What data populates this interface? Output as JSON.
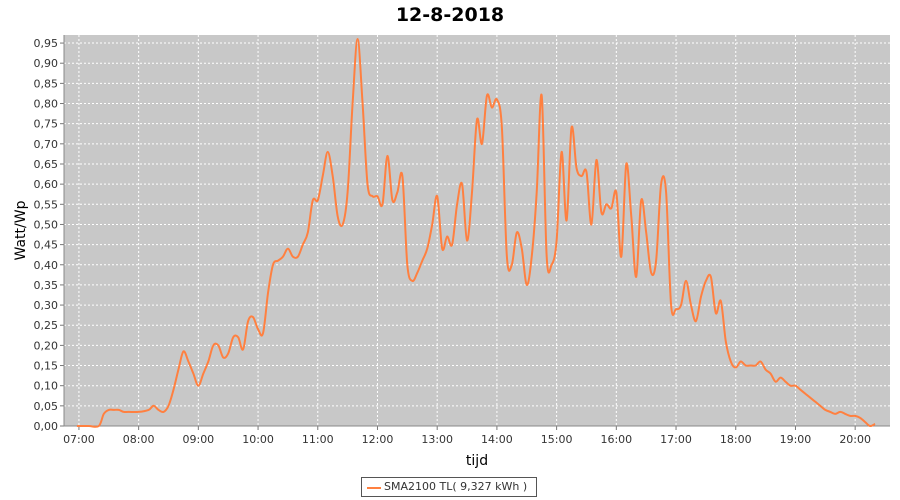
{
  "chart_data": {
    "type": "line",
    "title": "12-8-2018",
    "xlabel": "tijd",
    "ylabel": "Watt/Wp",
    "x_ticks": [
      "07:00",
      "08:00",
      "09:00",
      "10:00",
      "11:00",
      "12:00",
      "13:00",
      "14:00",
      "15:00",
      "16:00",
      "17:00",
      "18:00",
      "19:00",
      "20:00"
    ],
    "y_ticks": [
      "0,00",
      "0,05",
      "0,10",
      "0,15",
      "0,20",
      "0,25",
      "0,30",
      "0,35",
      "0,40",
      "0,45",
      "0,50",
      "0,55",
      "0,60",
      "0,65",
      "0,70",
      "0,75",
      "0,80",
      "0,85",
      "0,90",
      "0,95"
    ],
    "xlim": [
      "06:45",
      "20:35"
    ],
    "ylim": [
      0,
      0.97
    ],
    "grid": true,
    "background_color": "#c8c8c8",
    "grid_color": "#ffffff",
    "legend_position": "bottom-center",
    "series": [
      {
        "name": "SMA2100 TL( 9,327 kWh )",
        "color": "#ff8040",
        "x": [
          "06:58",
          "07:10",
          "07:20",
          "07:25",
          "07:30",
          "07:35",
          "07:40",
          "07:45",
          "07:50",
          "08:00",
          "08:10",
          "08:15",
          "08:20",
          "08:25",
          "08:30",
          "08:35",
          "08:40",
          "08:45",
          "08:50",
          "08:55",
          "09:00",
          "09:05",
          "09:10",
          "09:15",
          "09:20",
          "09:25",
          "09:30",
          "09:35",
          "09:40",
          "09:45",
          "09:50",
          "09:55",
          "10:00",
          "10:05",
          "10:10",
          "10:15",
          "10:20",
          "10:25",
          "10:30",
          "10:35",
          "10:40",
          "10:45",
          "10:50",
          "10:55",
          "11:00",
          "11:05",
          "11:10",
          "11:15",
          "11:20",
          "11:25",
          "11:30",
          "11:35",
          "11:40",
          "11:45",
          "11:50",
          "11:55",
          "12:00",
          "12:05",
          "12:10",
          "12:15",
          "12:20",
          "12:25",
          "12:30",
          "12:35",
          "12:40",
          "12:45",
          "12:50",
          "12:55",
          "13:00",
          "13:05",
          "13:10",
          "13:15",
          "13:20",
          "13:25",
          "13:30",
          "13:35",
          "13:40",
          "13:45",
          "13:50",
          "13:55",
          "14:00",
          "14:05",
          "14:10",
          "14:15",
          "14:20",
          "14:25",
          "14:30",
          "14:35",
          "14:40",
          "14:45",
          "14:50",
          "14:55",
          "15:00",
          "15:05",
          "15:10",
          "15:15",
          "15:20",
          "15:25",
          "15:30",
          "15:35",
          "15:40",
          "15:45",
          "15:50",
          "15:55",
          "16:00",
          "16:05",
          "16:10",
          "16:15",
          "16:20",
          "16:25",
          "16:30",
          "16:35",
          "16:40",
          "16:45",
          "16:50",
          "16:55",
          "17:00",
          "17:05",
          "17:10",
          "17:15",
          "17:20",
          "17:25",
          "17:30",
          "17:35",
          "17:40",
          "17:45",
          "17:50",
          "17:55",
          "18:00",
          "18:05",
          "18:10",
          "18:15",
          "18:20",
          "18:25",
          "18:30",
          "18:35",
          "18:40",
          "18:45",
          "18:50",
          "18:55",
          "19:00",
          "19:05",
          "19:10",
          "19:15",
          "19:20",
          "19:25",
          "19:30",
          "19:35",
          "19:40",
          "19:45",
          "19:50",
          "19:55",
          "20:00",
          "20:05",
          "20:10",
          "20:15",
          "20:20"
        ],
        "values": [
          0.0,
          0.0,
          0.0,
          0.03,
          0.04,
          0.04,
          0.04,
          0.035,
          0.035,
          0.035,
          0.04,
          0.05,
          0.04,
          0.035,
          0.05,
          0.09,
          0.14,
          0.185,
          0.16,
          0.13,
          0.1,
          0.13,
          0.16,
          0.2,
          0.2,
          0.17,
          0.18,
          0.22,
          0.22,
          0.19,
          0.26,
          0.27,
          0.24,
          0.23,
          0.33,
          0.4,
          0.41,
          0.42,
          0.44,
          0.42,
          0.42,
          0.45,
          0.48,
          0.56,
          0.56,
          0.62,
          0.68,
          0.62,
          0.52,
          0.5,
          0.58,
          0.8,
          0.96,
          0.8,
          0.6,
          0.57,
          0.57,
          0.55,
          0.67,
          0.56,
          0.58,
          0.62,
          0.4,
          0.36,
          0.38,
          0.41,
          0.44,
          0.5,
          0.57,
          0.44,
          0.47,
          0.45,
          0.55,
          0.6,
          0.46,
          0.58,
          0.76,
          0.7,
          0.82,
          0.79,
          0.81,
          0.74,
          0.42,
          0.4,
          0.48,
          0.44,
          0.35,
          0.42,
          0.58,
          0.82,
          0.42,
          0.4,
          0.46,
          0.68,
          0.51,
          0.74,
          0.64,
          0.62,
          0.63,
          0.5,
          0.66,
          0.53,
          0.55,
          0.54,
          0.58,
          0.42,
          0.65,
          0.52,
          0.37,
          0.56,
          0.48,
          0.38,
          0.41,
          0.6,
          0.58,
          0.3,
          0.29,
          0.3,
          0.36,
          0.3,
          0.26,
          0.32,
          0.36,
          0.37,
          0.28,
          0.31,
          0.21,
          0.16,
          0.145,
          0.16,
          0.15,
          0.15,
          0.15,
          0.16,
          0.14,
          0.13,
          0.11,
          0.12,
          0.11,
          0.1,
          0.1,
          0.09,
          0.08,
          0.07,
          0.06,
          0.05,
          0.04,
          0.035,
          0.03,
          0.035,
          0.03,
          0.025,
          0.025,
          0.02,
          0.01,
          0.0,
          0.005
        ]
      }
    ]
  }
}
